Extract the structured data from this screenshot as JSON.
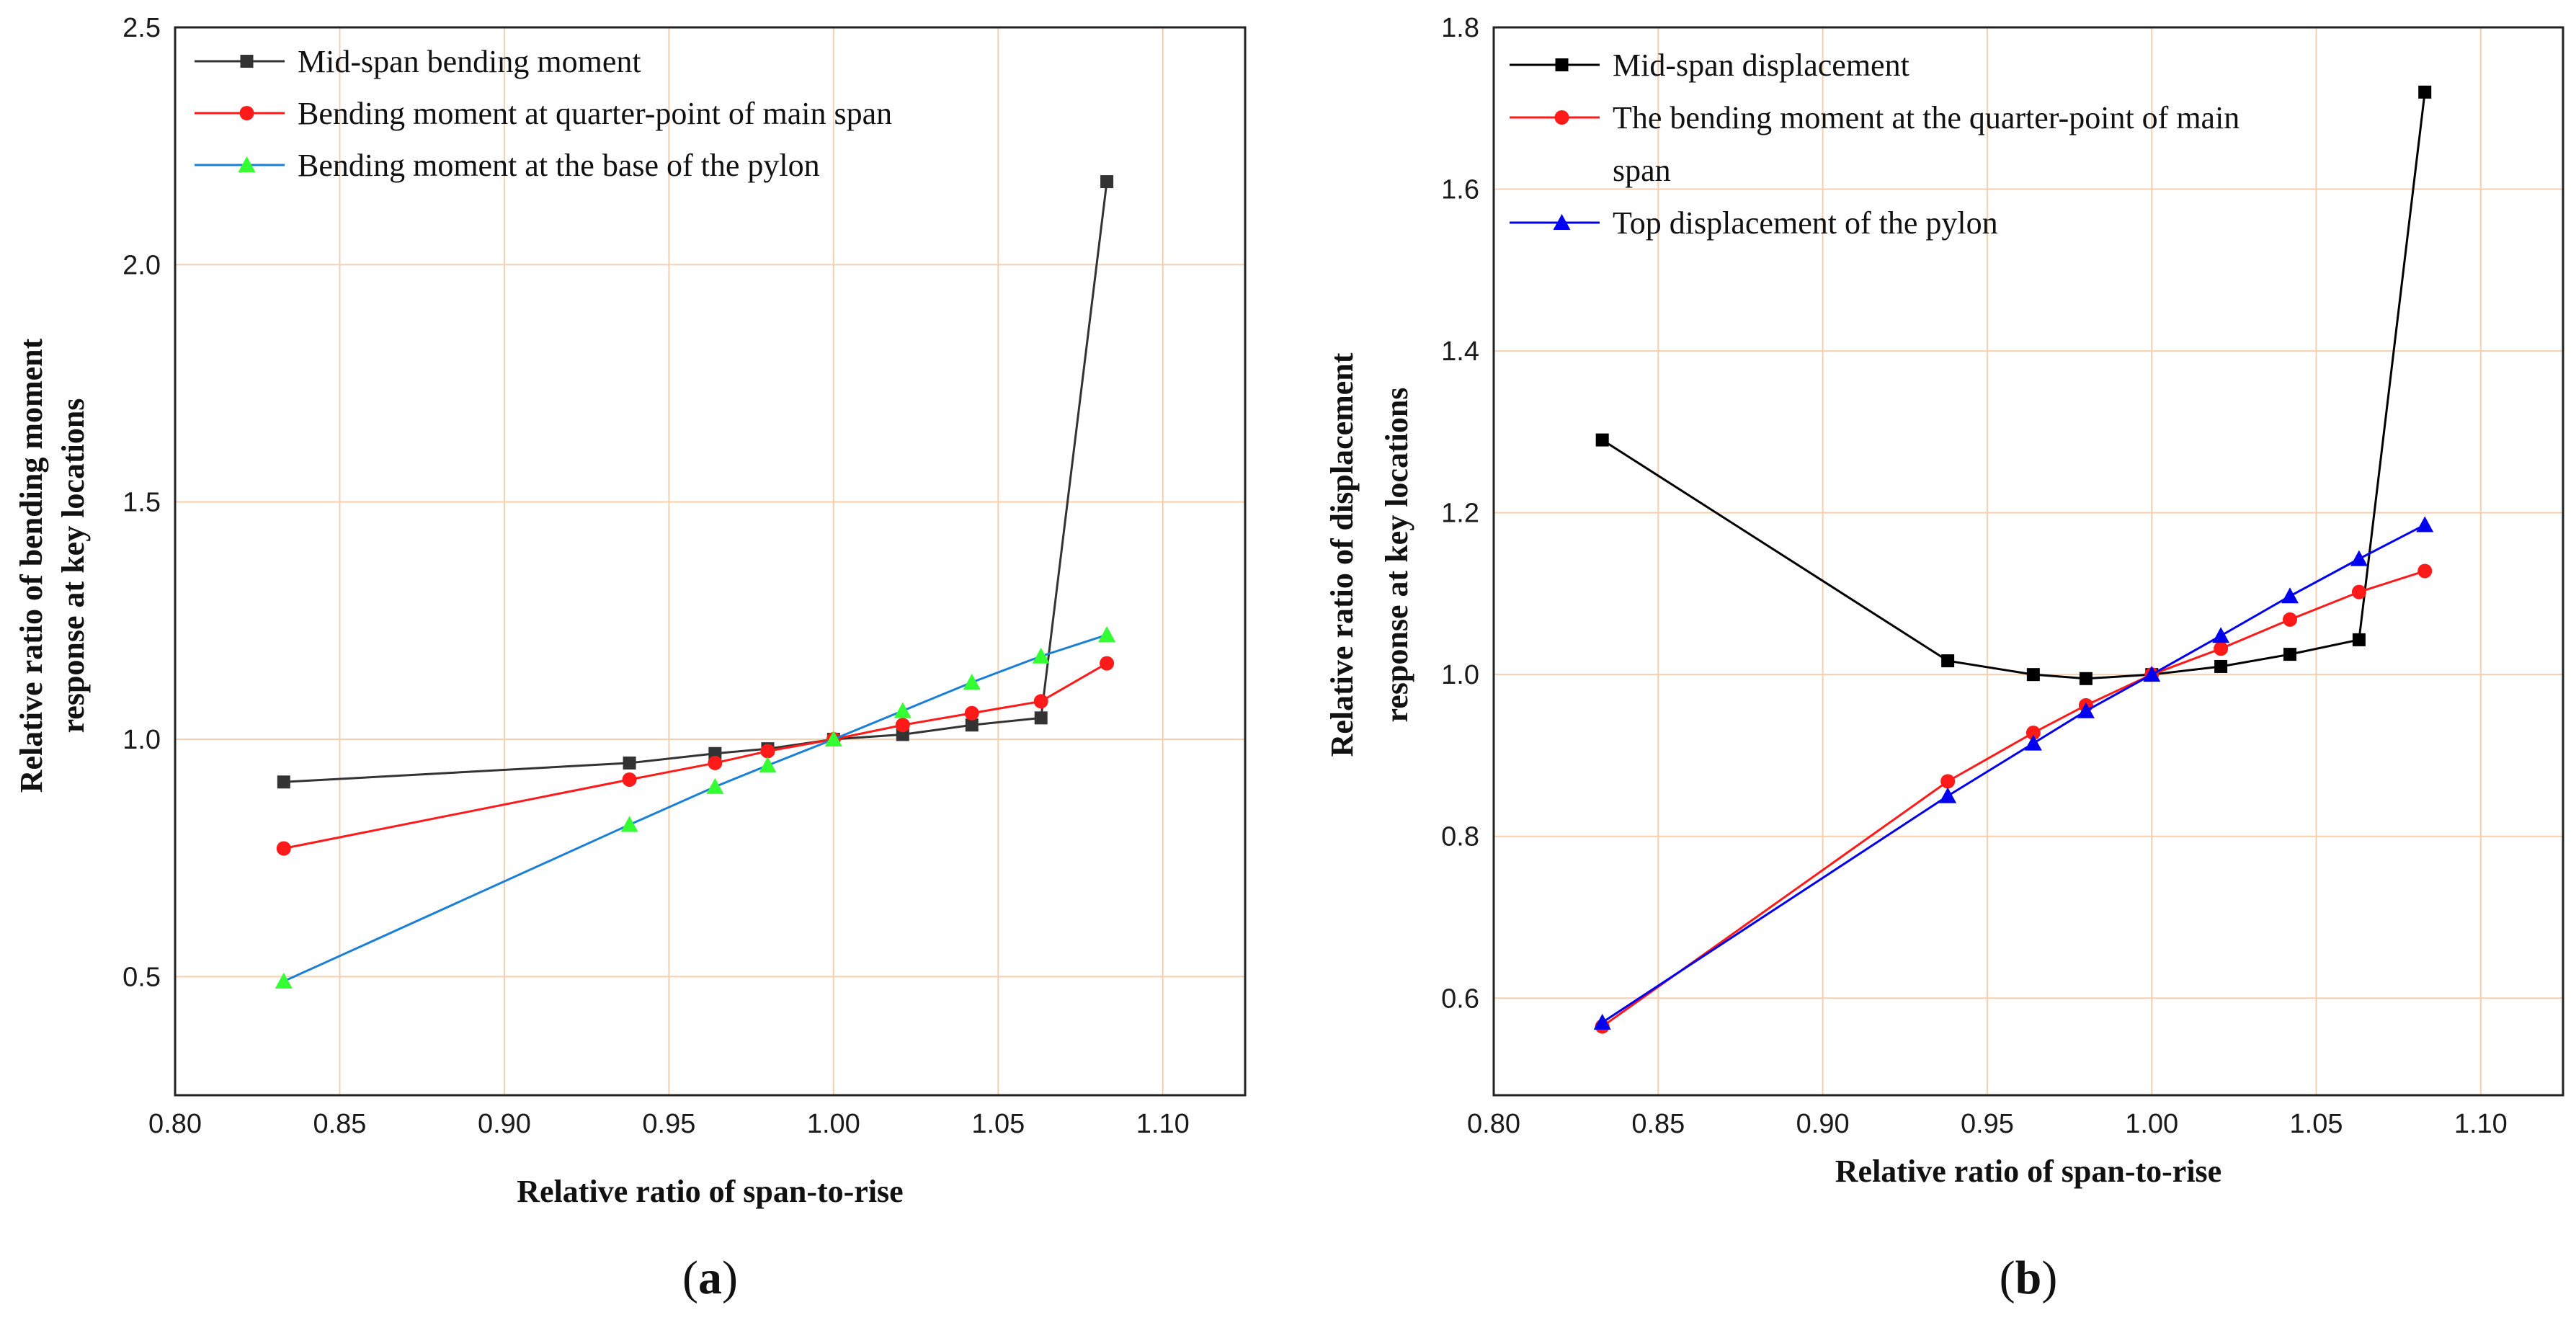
{
  "chart_data": [
    {
      "type": "line",
      "panel_label": "a",
      "xlabel": "Relative ratio of span-to-rise",
      "ylabel_lines": [
        "Relative ratio of bending moment",
        "response at key locations"
      ],
      "xlim": [
        0.8,
        1.125
      ],
      "ylim": [
        0.25,
        2.5
      ],
      "xticks": [
        "0.80",
        "0.85",
        "0.90",
        "0.95",
        "1.00",
        "1.05",
        "1.10"
      ],
      "yticks": [
        "0.5",
        "1.0",
        "1.5",
        "2.0",
        "2.5"
      ],
      "grid": true,
      "legend_position": "top-left",
      "x": [
        0.833,
        0.938,
        0.964,
        0.98,
        1.0,
        1.021,
        1.042,
        1.063,
        1.083
      ],
      "series": [
        {
          "name": "Mid-span bending moment",
          "color": "#333333",
          "marker": "square",
          "values": [
            0.91,
            0.95,
            0.97,
            0.98,
            1.0,
            1.01,
            1.03,
            1.045,
            2.175
          ]
        },
        {
          "name": "Bending moment at quarter-point of main span",
          "color": "#ff1a1a",
          "marker": "circle",
          "values": [
            0.77,
            0.915,
            0.95,
            0.975,
            1.0,
            1.03,
            1.055,
            1.08,
            1.16
          ]
        },
        {
          "name": "Bending moment at the base of the pylon",
          "color": "#1a7fd6",
          "marker": "triangle",
          "marker_color": "#33ff33",
          "values": [
            0.49,
            0.82,
            0.9,
            0.945,
            1.0,
            1.06,
            1.12,
            1.175,
            1.22
          ]
        }
      ]
    },
    {
      "type": "line",
      "panel_label": "b",
      "xlabel": "Relative ratio of span-to-rise",
      "ylabel_lines": [
        "Relative ratio of displacement",
        "response at key locations"
      ],
      "xlim": [
        0.8,
        1.125
      ],
      "ylim": [
        0.48,
        1.8
      ],
      "xticks": [
        "0.80",
        "0.85",
        "0.90",
        "0.95",
        "1.00",
        "1.05",
        "1.10"
      ],
      "yticks": [
        "0.6",
        "0.8",
        "1.0",
        "1.2",
        "1.4",
        "1.6",
        "1.8"
      ],
      "grid": true,
      "legend_position": "top-left",
      "x": [
        0.833,
        0.938,
        0.964,
        0.98,
        1.0,
        1.021,
        1.042,
        1.063,
        1.083
      ],
      "series": [
        {
          "name": "Mid-span displacement",
          "color": "#000000",
          "marker": "square",
          "values": [
            1.29,
            1.017,
            1.0,
            0.995,
            1.0,
            1.01,
            1.025,
            1.043,
            1.72
          ]
        },
        {
          "name_lines": [
            "The bending moment at the quarter-point of main",
            "span"
          ],
          "color": "#ff1a1a",
          "marker": "circle",
          "values": [
            0.565,
            0.868,
            0.928,
            0.962,
            1.0,
            1.032,
            1.068,
            1.102,
            1.128
          ]
        },
        {
          "name": "Top displacement of the pylon",
          "color": "#0000ee",
          "marker": "triangle",
          "values": [
            0.57,
            0.85,
            0.915,
            0.955,
            1.0,
            1.048,
            1.097,
            1.143,
            1.185
          ]
        }
      ]
    }
  ]
}
